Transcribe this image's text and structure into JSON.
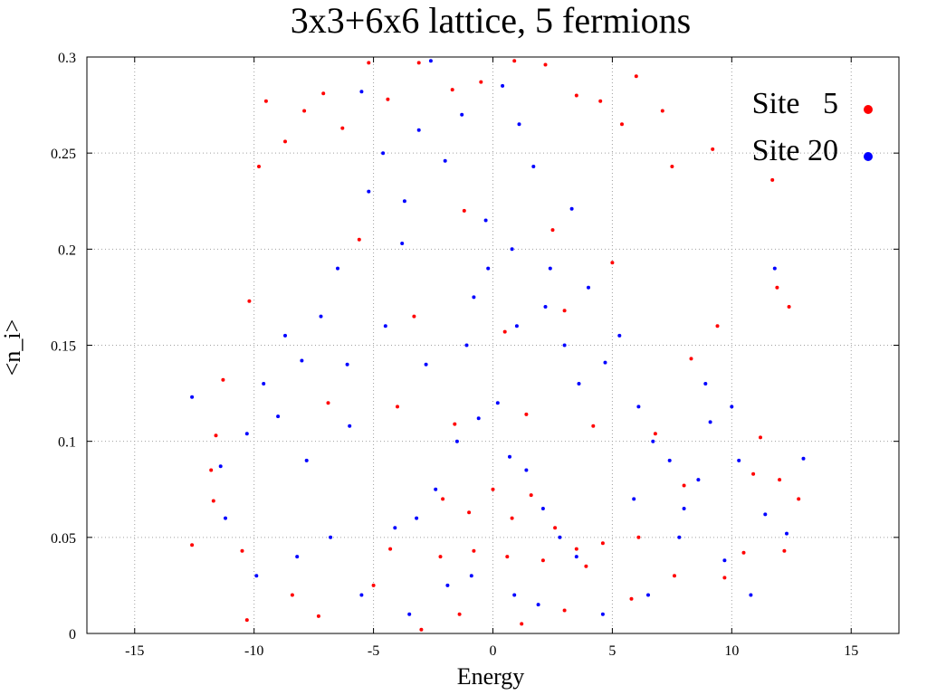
{
  "chart_data": {
    "type": "scatter",
    "title": "3x3+6x6 lattice, 5 fermions",
    "xlabel": "Energy",
    "ylabel": "<n_i>",
    "xlim": [
      -17,
      17
    ],
    "ylim": [
      0,
      0.3
    ],
    "x_ticks": [
      -15,
      -10,
      -5,
      0,
      5,
      10,
      15
    ],
    "y_ticks": [
      0,
      0.05,
      0.1,
      0.15,
      0.2,
      0.25,
      0.3
    ],
    "x_tick_labels": [
      "-15",
      "-10",
      "-5",
      "0",
      "5",
      "10",
      "15"
    ],
    "y_tick_labels": [
      "0",
      "0.05",
      "0.1",
      "0.15",
      "0.2",
      "0.25",
      "0.3"
    ],
    "grid": true,
    "legend_position": "top-right",
    "series": [
      {
        "name": "Site   5",
        "color": "#ff0000",
        "sample_points": [
          [
            -12.6,
            0.046
          ],
          [
            -11.6,
            0.103
          ],
          [
            -11.3,
            0.132
          ],
          [
            -10.2,
            0.173
          ],
          [
            -9.8,
            0.243
          ],
          [
            -9.5,
            0.277
          ],
          [
            -8.7,
            0.256
          ],
          [
            -7.9,
            0.272
          ],
          [
            -7.1,
            0.281
          ],
          [
            -6.3,
            0.263
          ],
          [
            -5.2,
            0.297
          ],
          [
            -4.4,
            0.278
          ],
          [
            -3.1,
            0.297
          ],
          [
            -1.7,
            0.283
          ],
          [
            -0.5,
            0.287
          ],
          [
            0.9,
            0.298
          ],
          [
            2.2,
            0.296
          ],
          [
            3.5,
            0.28
          ],
          [
            4.5,
            0.277
          ],
          [
            5.4,
            0.265
          ],
          [
            6.0,
            0.29
          ],
          [
            7.1,
            0.272
          ],
          [
            7.5,
            0.243
          ],
          [
            9.2,
            0.252
          ],
          [
            11.7,
            0.236
          ],
          [
            11.9,
            0.18
          ],
          [
            12.4,
            0.17
          ],
          [
            12.8,
            0.07
          ],
          [
            12.2,
            0.043
          ],
          [
            -11.8,
            0.085
          ],
          [
            -11.7,
            0.069
          ],
          [
            -10.5,
            0.043
          ],
          [
            -10.3,
            0.007
          ],
          [
            -8.4,
            0.02
          ],
          [
            -7.3,
            0.009
          ],
          [
            -4.3,
            0.044
          ],
          [
            -2.1,
            0.07
          ],
          [
            -1.0,
            0.063
          ],
          [
            0.0,
            0.075
          ],
          [
            0.8,
            0.06
          ],
          [
            1.6,
            0.072
          ],
          [
            2.6,
            0.055
          ],
          [
            3.5,
            0.044
          ],
          [
            4.6,
            0.047
          ],
          [
            6.1,
            0.05
          ],
          [
            -2.2,
            0.04
          ],
          [
            -0.8,
            0.043
          ],
          [
            0.6,
            0.04
          ],
          [
            2.1,
            0.038
          ],
          [
            3.9,
            0.035
          ],
          [
            -1.4,
            0.01
          ],
          [
            1.2,
            0.005
          ],
          [
            3.0,
            0.012
          ],
          [
            -3.0,
            0.002
          ],
          [
            -5.0,
            0.025
          ],
          [
            5.8,
            0.018
          ],
          [
            7.6,
            0.03
          ],
          [
            9.7,
            0.029
          ],
          [
            10.5,
            0.042
          ],
          [
            10.9,
            0.083
          ],
          [
            11.2,
            0.102
          ],
          [
            12.0,
            0.08
          ],
          [
            8.0,
            0.077
          ],
          [
            -6.9,
            0.12
          ],
          [
            -4.0,
            0.118
          ],
          [
            -1.6,
            0.109
          ],
          [
            1.4,
            0.114
          ],
          [
            4.2,
            0.108
          ],
          [
            6.8,
            0.104
          ],
          [
            -3.3,
            0.165
          ],
          [
            0.5,
            0.157
          ],
          [
            3.0,
            0.168
          ],
          [
            -5.6,
            0.205
          ],
          [
            -1.2,
            0.22
          ],
          [
            2.5,
            0.21
          ],
          [
            5.0,
            0.193
          ],
          [
            8.3,
            0.143
          ],
          [
            9.4,
            0.16
          ]
        ]
      },
      {
        "name": "Site 20",
        "color": "#0000ff",
        "sample_points": [
          [
            -12.6,
            0.123
          ],
          [
            -11.4,
            0.087
          ],
          [
            -11.2,
            0.06
          ],
          [
            -10.3,
            0.104
          ],
          [
            -9.6,
            0.13
          ],
          [
            -9.0,
            0.113
          ],
          [
            -8.7,
            0.155
          ],
          [
            -8.0,
            0.142
          ],
          [
            -7.8,
            0.09
          ],
          [
            -7.2,
            0.165
          ],
          [
            -6.5,
            0.19
          ],
          [
            -6.0,
            0.108
          ],
          [
            -5.5,
            0.282
          ],
          [
            -5.2,
            0.23
          ],
          [
            -4.6,
            0.25
          ],
          [
            -3.8,
            0.203
          ],
          [
            -3.1,
            0.262
          ],
          [
            -2.6,
            0.298
          ],
          [
            -2.0,
            0.246
          ],
          [
            -1.3,
            0.27
          ],
          [
            -0.8,
            0.175
          ],
          [
            -0.2,
            0.19
          ],
          [
            0.4,
            0.285
          ],
          [
            1.1,
            0.265
          ],
          [
            1.7,
            0.243
          ],
          [
            2.4,
            0.19
          ],
          [
            3.0,
            0.15
          ],
          [
            3.6,
            0.13
          ],
          [
            4.0,
            0.18
          ],
          [
            4.7,
            0.141
          ],
          [
            5.3,
            0.155
          ],
          [
            6.1,
            0.118
          ],
          [
            6.7,
            0.1
          ],
          [
            7.4,
            0.09
          ],
          [
            8.0,
            0.065
          ],
          [
            8.6,
            0.08
          ],
          [
            9.1,
            0.11
          ],
          [
            9.7,
            0.038
          ],
          [
            10.3,
            0.09
          ],
          [
            10.8,
            0.02
          ],
          [
            11.4,
            0.062
          ],
          [
            12.3,
            0.052
          ],
          [
            13.0,
            0.091
          ],
          [
            -1.5,
            0.1
          ],
          [
            -0.6,
            0.112
          ],
          [
            0.2,
            0.12
          ],
          [
            0.7,
            0.092
          ],
          [
            1.4,
            0.085
          ],
          [
            -2.4,
            0.075
          ],
          [
            -3.2,
            0.06
          ],
          [
            -4.1,
            0.055
          ],
          [
            2.1,
            0.065
          ],
          [
            2.8,
            0.05
          ],
          [
            3.5,
            0.04
          ],
          [
            -1.9,
            0.025
          ],
          [
            -0.9,
            0.03
          ],
          [
            0.9,
            0.02
          ],
          [
            1.9,
            0.015
          ],
          [
            -3.5,
            0.01
          ],
          [
            -5.5,
            0.02
          ],
          [
            4.6,
            0.01
          ],
          [
            6.5,
            0.02
          ],
          [
            -6.8,
            0.05
          ],
          [
            -8.2,
            0.04
          ],
          [
            -9.9,
            0.03
          ],
          [
            5.9,
            0.07
          ],
          [
            7.8,
            0.05
          ],
          [
            -2.8,
            0.14
          ],
          [
            -1.1,
            0.15
          ],
          [
            1.0,
            0.16
          ],
          [
            2.2,
            0.17
          ],
          [
            -4.5,
            0.16
          ],
          [
            -6.1,
            0.14
          ],
          [
            8.9,
            0.13
          ],
          [
            10.0,
            0.118
          ],
          [
            11.8,
            0.19
          ],
          [
            -0.3,
            0.215
          ],
          [
            0.8,
            0.2
          ],
          [
            -3.7,
            0.225
          ],
          [
            3.3,
            0.221
          ]
        ]
      }
    ]
  }
}
